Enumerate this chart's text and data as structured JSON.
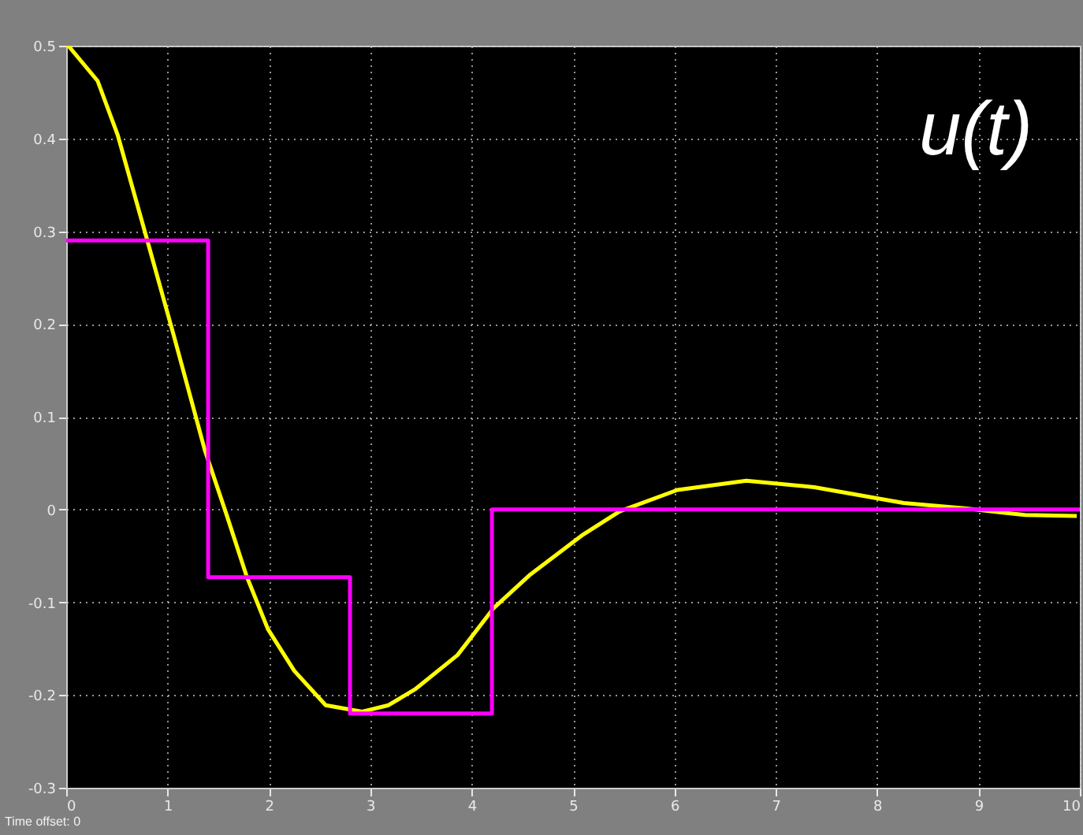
{
  "chart_data": {
    "type": "line",
    "x": [
      0,
      0.02,
      0.31,
      0.51,
      0.8,
      1.06,
      1.37,
      1.58,
      1.78,
      1.99,
      2.25,
      2.56,
      2.92,
      3.18,
      3.44,
      3.86,
      4.22,
      4.58,
      5.1,
      5.46,
      6.03,
      6.71,
      7.38,
      8.26,
      8.88,
      9.46,
      9.97
    ],
    "series": [
      {
        "color": "#ffff00",
        "values": [
          0.5,
          0.5,
          0.462,
          0.403,
          0.29,
          0.188,
          0.063,
          -0.005,
          -0.072,
          -0.129,
          -0.174,
          -0.211,
          -0.218,
          -0.211,
          -0.194,
          -0.157,
          -0.106,
          -0.07,
          -0.027,
          -0.002,
          0.021,
          0.031,
          0.024,
          0.007,
          0.001,
          -0.006,
          -0.007
        ]
      },
      {
        "type": "step",
        "color": "#ff00ff",
        "x": [
          0,
          1.4,
          2.8,
          4.2,
          10
        ],
        "values": [
          0.29,
          -0.073,
          -0.22,
          0,
          0
        ]
      }
    ],
    "xlim": [
      0,
      10
    ],
    "xticks": [
      0,
      1,
      2,
      3,
      4,
      5,
      6,
      7,
      8,
      9,
      10
    ],
    "ylim": [
      -0.3,
      0.5
    ],
    "yticks": [
      -0.3,
      -0.2,
      -0.1,
      0,
      0.1,
      0.2,
      0.3,
      0.4,
      0.5
    ],
    "grid": true,
    "legend": false,
    "annotations": [
      "u(t)",
      "Time offset:  0"
    ]
  }
}
